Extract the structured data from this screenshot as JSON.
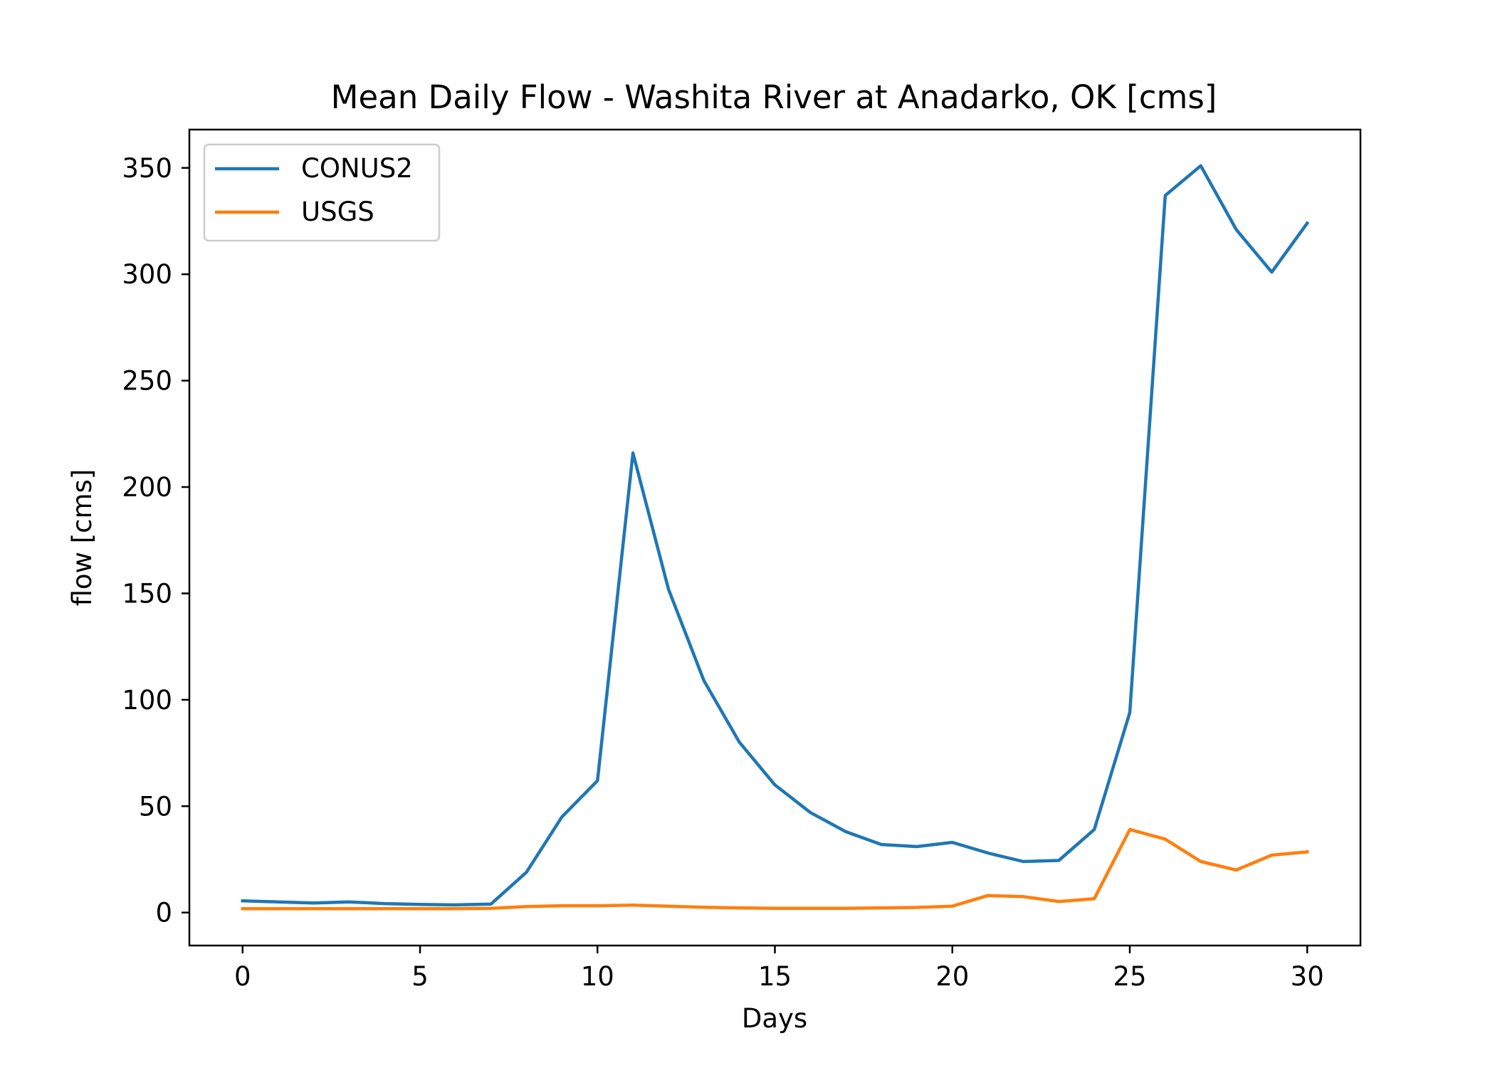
{
  "chart_data": {
    "type": "line",
    "title": "Mean Daily Flow - Washita River at Anadarko, OK [cms]",
    "xlabel": "Days",
    "ylabel": "flow [cms]",
    "xlim": [
      -1.5,
      31.5
    ],
    "ylim": [
      -15.5,
      368
    ],
    "xticks": [
      0,
      5,
      10,
      15,
      20,
      25,
      30
    ],
    "yticks": [
      0,
      50,
      100,
      150,
      200,
      250,
      300,
      350
    ],
    "grid": false,
    "legend_position": "upper-left",
    "x": [
      0,
      1,
      2,
      3,
      4,
      5,
      6,
      7,
      8,
      9,
      10,
      11,
      12,
      13,
      14,
      15,
      16,
      17,
      18,
      19,
      20,
      21,
      22,
      23,
      24,
      25,
      26,
      27,
      28,
      29,
      30
    ],
    "series": [
      {
        "name": "CONUS2",
        "color": "#1f77b4",
        "values": [
          5.5,
          5.0,
          4.5,
          5.0,
          4.2,
          3.8,
          3.6,
          4.0,
          19,
          45,
          62,
          216,
          152,
          109,
          80,
          60,
          47,
          38,
          32,
          31,
          33,
          28,
          24,
          24.5,
          39,
          94,
          337,
          351,
          321,
          301,
          324
        ]
      },
      {
        "name": "USGS",
        "color": "#ff7f0e",
        "values": [
          1.8,
          1.8,
          1.8,
          1.8,
          1.8,
          1.8,
          1.8,
          2.0,
          2.8,
          3.2,
          3.2,
          3.5,
          3.0,
          2.5,
          2.2,
          2.0,
          2.0,
          2.0,
          2.2,
          2.4,
          3.0,
          8.0,
          7.5,
          5.2,
          6.5,
          39,
          34.5,
          24,
          20,
          27,
          28.5
        ]
      }
    ]
  }
}
